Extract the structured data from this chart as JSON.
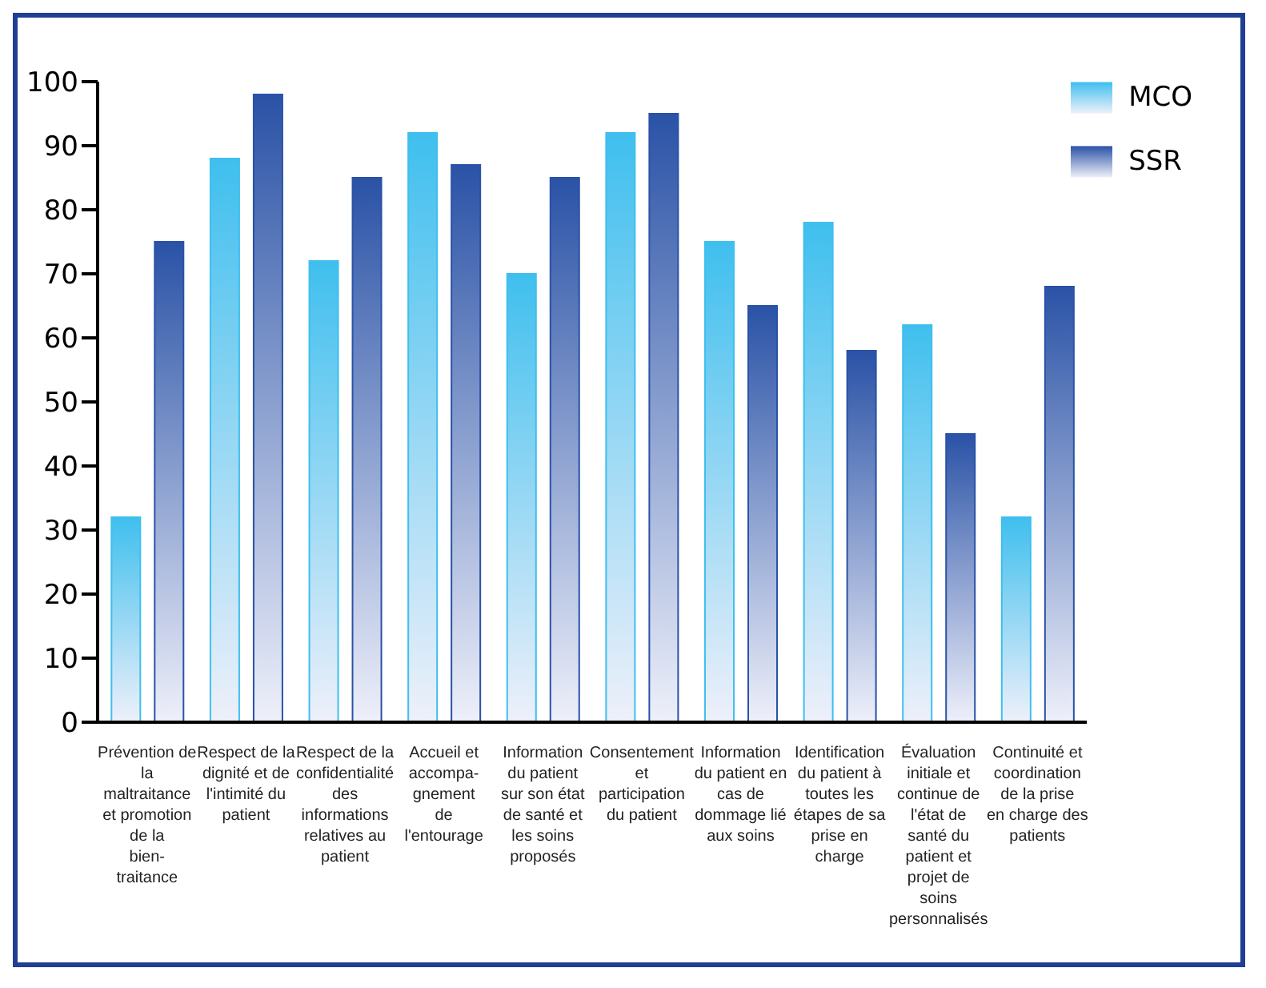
{
  "chart_data": {
    "type": "bar",
    "categories": [
      "Prévention de la maltraitance et promotion de la bien-traitance",
      "Respect de la dignité et de l'intimité du patient",
      "Respect de la confidentialité des informations relatives au patient",
      "Accueil et accompa-gnement de l'entourage",
      "Information du patient sur son état de santé et les soins proposés",
      "Consentement et participation du patient",
      "Information du patient en cas de dommage lié aux soins",
      "Identification du patient à toutes les étapes de sa prise en charge",
      "Évaluation initiale et continue de l'état de santé du patient et projet de soins personnalisés",
      "Continuité et coordination de la prise en charge des patients"
    ],
    "series": [
      {
        "name": "MCO",
        "color": "#3fbfee",
        "values": [
          32,
          88,
          72,
          92,
          70,
          92,
          75,
          78,
          62,
          32
        ]
      },
      {
        "name": "SSR",
        "color": "#2a52a6",
        "values": [
          75,
          98,
          85,
          87,
          85,
          95,
          65,
          58,
          45,
          68
        ]
      }
    ],
    "ylim": [
      0,
      100
    ],
    "yticks": [
      0,
      10,
      20,
      30,
      40,
      50,
      60,
      70,
      80,
      90,
      100
    ],
    "grid": false,
    "legend": "top right"
  }
}
